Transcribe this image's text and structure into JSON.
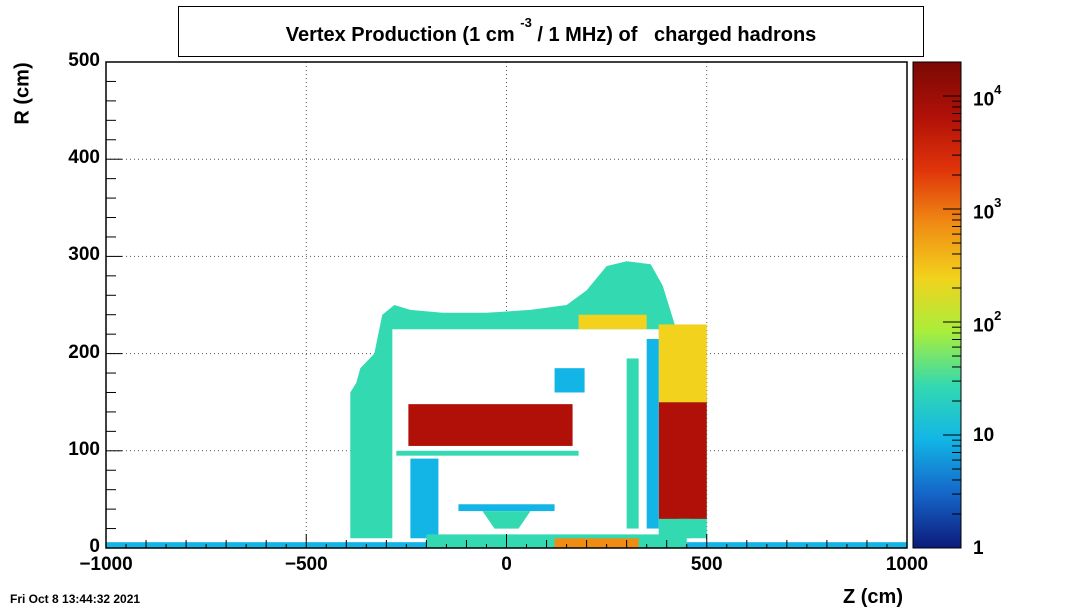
{
  "title": {
    "main_a": "Vertex Production (1 cm",
    "sup": "-3",
    "main_b": "/ 1 MHz) of",
    "particle": "charged hadrons"
  },
  "timestamp": "Fri Oct  8 13:44:32 2021",
  "chart_data": {
    "type": "heatmap",
    "xlabel": "Z (cm)",
    "ylabel": "R (cm)",
    "xlim": [
      -1000,
      1000
    ],
    "ylim": [
      0,
      500
    ],
    "x_ticks": [
      "−1000",
      "−500",
      "0",
      "500",
      "1000"
    ],
    "y_ticks": [
      "0",
      "100",
      "200",
      "300",
      "400",
      "500"
    ],
    "grid": true,
    "colorbar": {
      "scale": "log",
      "range": [
        1,
        20000
      ],
      "ticks": [
        {
          "value": 1,
          "base": "1",
          "exp": ""
        },
        {
          "value": 10,
          "base": "10",
          "exp": ""
        },
        {
          "value": 100,
          "base": "10",
          "exp": "2"
        },
        {
          "value": 1000,
          "base": "10",
          "exp": "3"
        },
        {
          "value": 10000,
          "base": "10",
          "exp": "4"
        }
      ],
      "palette": [
        "#0c1a7a",
        "#1565c8",
        "#12b5e6",
        "#33d9b0",
        "#a8ee3c",
        "#f2d21c",
        "#f08c14",
        "#e0340a",
        "#b01008",
        "#7a0a04"
      ]
    },
    "regions": [
      {
        "name": "outer-halo",
        "shape": "polygon",
        "level": 4,
        "points": [
          [
            -390,
            10
          ],
          [
            -390,
            160
          ],
          [
            -375,
            170
          ],
          [
            -365,
            185
          ],
          [
            -330,
            200
          ],
          [
            -310,
            240
          ],
          [
            -280,
            250
          ],
          [
            -240,
            245
          ],
          [
            -160,
            242
          ],
          [
            -50,
            242
          ],
          [
            60,
            245
          ],
          [
            150,
            250
          ],
          [
            200,
            265
          ],
          [
            250,
            290
          ],
          [
            300,
            295
          ],
          [
            360,
            292
          ],
          [
            390,
            270
          ],
          [
            420,
            230
          ],
          [
            450,
            200
          ],
          [
            480,
            170
          ],
          [
            500,
            160
          ],
          [
            500,
            10
          ]
        ]
      },
      {
        "name": "forward-hot-band",
        "shape": "rect",
        "level": 12,
        "z": [
          380,
          500
        ],
        "r": [
          30,
          150
        ]
      },
      {
        "name": "forward-gradient",
        "shape": "rect",
        "level": 8,
        "z": [
          380,
          500
        ],
        "r": [
          150,
          230
        ]
      },
      {
        "name": "calorimeter-top",
        "shape": "rect",
        "level": 7,
        "z": [
          180,
          350
        ],
        "r": [
          225,
          240
        ]
      },
      {
        "name": "inner-cavity",
        "shape": "rect",
        "level": 0,
        "z": [
          -285,
          380
        ],
        "r": [
          0,
          225
        ]
      },
      {
        "name": "barrel-hot-block",
        "shape": "rect",
        "level": 13,
        "z": [
          -245,
          165
        ],
        "r": [
          105,
          148
        ]
      },
      {
        "name": "barrel-support-bar",
        "shape": "rect",
        "level": 4,
        "z": [
          -275,
          180
        ],
        "r": [
          95,
          100
        ]
      },
      {
        "name": "tracker-stripes",
        "shape": "rect",
        "level": 3,
        "z": [
          -240,
          -170
        ],
        "r": [
          10,
          92
        ]
      },
      {
        "name": "inner-ring",
        "shape": "rect",
        "level": 3,
        "z": [
          -120,
          120
        ],
        "r": [
          38,
          45
        ]
      },
      {
        "name": "beampipe-cone",
        "shape": "polygon",
        "level": 5,
        "points": [
          [
            -60,
            38
          ],
          [
            60,
            38
          ],
          [
            30,
            20
          ],
          [
            -30,
            20
          ]
        ]
      },
      {
        "name": "endcap-post",
        "shape": "rect",
        "level": 5,
        "z": [
          300,
          330
        ],
        "r": [
          20,
          195
        ]
      },
      {
        "name": "endcap-post-2",
        "shape": "rect",
        "level": 3,
        "z": [
          350,
          380
        ],
        "r": [
          20,
          215
        ]
      },
      {
        "name": "beam-line",
        "shape": "rect",
        "level": 3,
        "z": [
          -1000,
          1000
        ],
        "r": [
          0,
          6
        ]
      },
      {
        "name": "beam-line-core",
        "shape": "rect",
        "level": 5,
        "z": [
          -200,
          450
        ],
        "r": [
          0,
          14
        ]
      },
      {
        "name": "beam-hotspot",
        "shape": "rect",
        "level": 9,
        "z": [
          120,
          330
        ],
        "r": [
          0,
          10
        ]
      },
      {
        "name": "small-detector",
        "shape": "rect",
        "level": 3,
        "z": [
          120,
          195
        ],
        "r": [
          160,
          185
        ]
      },
      {
        "name": "endcap-vertical",
        "shape": "rect",
        "level": 4,
        "z": [
          430,
          460
        ],
        "r": [
          10,
          30
        ]
      }
    ]
  }
}
